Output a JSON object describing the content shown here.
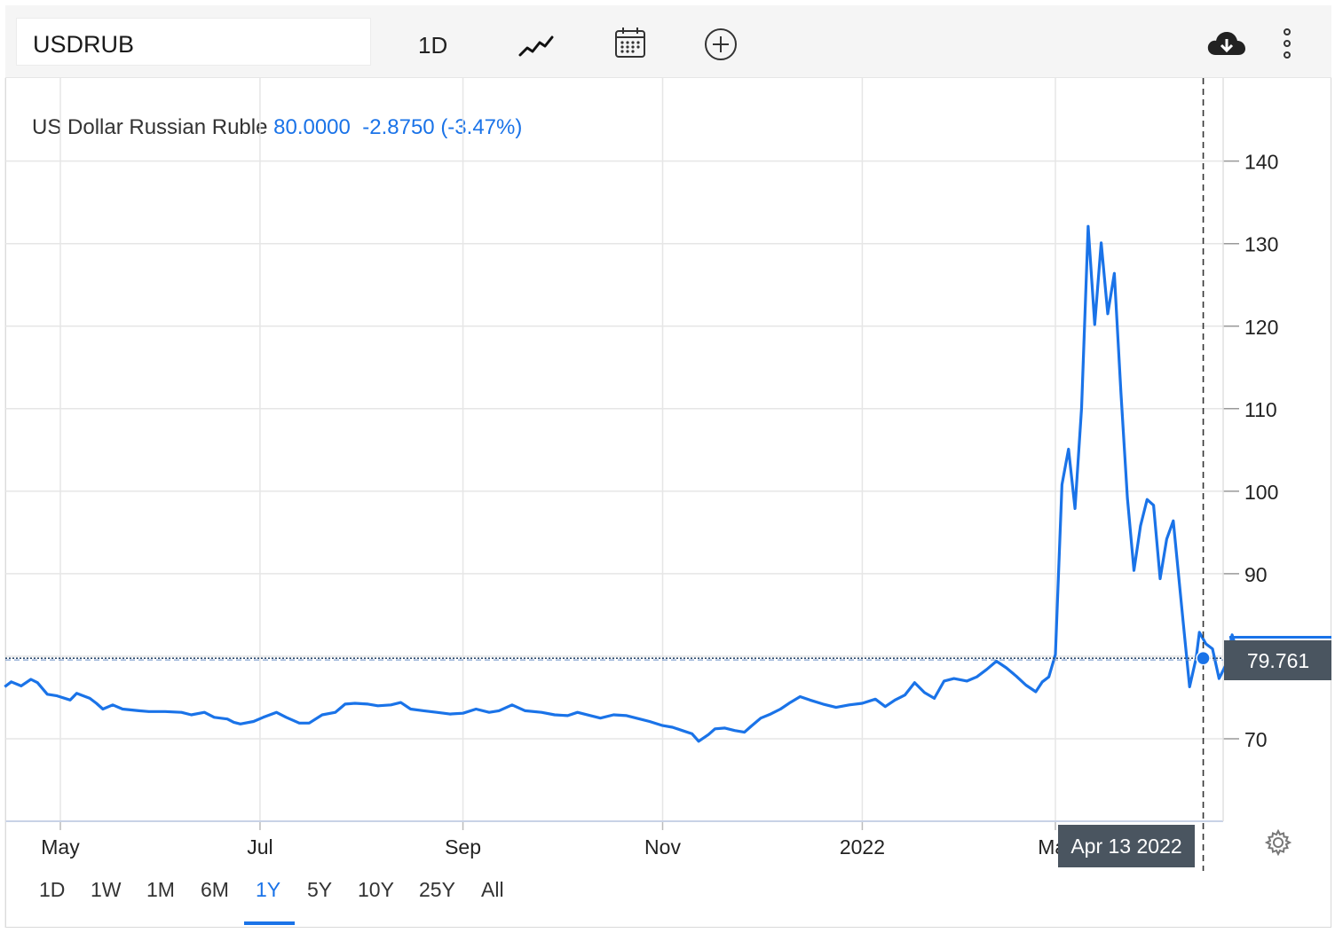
{
  "toolbar": {
    "symbol": "USDRUB",
    "interval_label": "1D",
    "icons": [
      "line-chart-icon",
      "calendar-icon",
      "plus-circle-icon",
      "cloud-download-icon",
      "more-vertical-icon"
    ]
  },
  "legend": {
    "name": "US Dollar Russian Ruble",
    "price": "80.0000",
    "change": "-2.8750",
    "change_pct": "(-3.47%)"
  },
  "crosshair": {
    "date_label": "Apr 13 2022",
    "price_label": "79.761"
  },
  "ranges": {
    "items": [
      "1D",
      "1W",
      "1M",
      "6M",
      "1Y",
      "5Y",
      "10Y",
      "25Y",
      "All"
    ],
    "active": "1Y"
  },
  "colors": {
    "line": "#1a73e8",
    "grid": "#e6e6e6",
    "tooltip_bg": "#4a5560"
  },
  "chart_data": {
    "type": "line",
    "title": "",
    "xlabel": "",
    "ylabel": "",
    "ylim": [
      60,
      150
    ],
    "yticks": [
      70,
      90,
      100,
      110,
      120,
      130,
      140
    ],
    "xticks": [
      {
        "label": "May",
        "date": "2021-05-01"
      },
      {
        "label": "Jul",
        "date": "2021-07-01"
      },
      {
        "label": "Sep",
        "date": "2021-09-01"
      },
      {
        "label": "Nov",
        "date": "2021-11-01"
      },
      {
        "label": "2022",
        "date": "2022-01-01"
      },
      {
        "label": "Mar",
        "date": "2022-03-01"
      }
    ],
    "grid": true,
    "series": [
      {
        "values": [
          [
            "2021-04-14",
            76.3
          ],
          [
            "2021-04-16",
            76.9
          ],
          [
            "2021-04-19",
            76.4
          ],
          [
            "2021-04-22",
            77.2
          ],
          [
            "2021-04-24",
            76.8
          ],
          [
            "2021-04-27",
            75.4
          ],
          [
            "2021-04-30",
            75.2
          ],
          [
            "2021-05-04",
            74.7
          ],
          [
            "2021-05-06",
            75.5
          ],
          [
            "2021-05-10",
            74.9
          ],
          [
            "2021-05-12",
            74.3
          ],
          [
            "2021-05-14",
            73.6
          ],
          [
            "2021-05-17",
            74.1
          ],
          [
            "2021-05-20",
            73.6
          ],
          [
            "2021-05-25",
            73.4
          ],
          [
            "2021-05-28",
            73.3
          ],
          [
            "2021-06-02",
            73.3
          ],
          [
            "2021-06-07",
            73.2
          ],
          [
            "2021-06-10",
            72.9
          ],
          [
            "2021-06-14",
            73.2
          ],
          [
            "2021-06-17",
            72.6
          ],
          [
            "2021-06-21",
            72.4
          ],
          [
            "2021-06-23",
            72.0
          ],
          [
            "2021-06-25",
            71.8
          ],
          [
            "2021-06-29",
            72.1
          ],
          [
            "2021-07-02",
            72.6
          ],
          [
            "2021-07-06",
            73.2
          ],
          [
            "2021-07-09",
            72.6
          ],
          [
            "2021-07-13",
            71.9
          ],
          [
            "2021-07-16",
            71.9
          ],
          [
            "2021-07-20",
            72.9
          ],
          [
            "2021-07-24",
            73.2
          ],
          [
            "2021-07-27",
            74.2
          ],
          [
            "2021-07-30",
            74.3
          ],
          [
            "2021-08-03",
            74.2
          ],
          [
            "2021-08-06",
            74.0
          ],
          [
            "2021-08-10",
            74.1
          ],
          [
            "2021-08-13",
            74.4
          ],
          [
            "2021-08-16",
            73.6
          ],
          [
            "2021-08-20",
            73.4
          ],
          [
            "2021-08-24",
            73.2
          ],
          [
            "2021-08-28",
            73.0
          ],
          [
            "2021-09-01",
            73.1
          ],
          [
            "2021-09-05",
            73.6
          ],
          [
            "2021-09-09",
            73.2
          ],
          [
            "2021-09-12",
            73.4
          ],
          [
            "2021-09-16",
            74.1
          ],
          [
            "2021-09-20",
            73.4
          ],
          [
            "2021-09-25",
            73.2
          ],
          [
            "2021-09-29",
            72.9
          ],
          [
            "2021-10-03",
            72.8
          ],
          [
            "2021-10-06",
            73.2
          ],
          [
            "2021-10-10",
            72.8
          ],
          [
            "2021-10-13",
            72.5
          ],
          [
            "2021-10-17",
            72.9
          ],
          [
            "2021-10-21",
            72.8
          ],
          [
            "2021-10-25",
            72.4
          ],
          [
            "2021-10-28",
            72.1
          ],
          [
            "2021-11-01",
            71.6
          ],
          [
            "2021-11-04",
            71.4
          ],
          [
            "2021-11-07",
            71.0
          ],
          [
            "2021-11-10",
            70.6
          ],
          [
            "2021-11-12",
            69.7
          ],
          [
            "2021-11-15",
            70.5
          ],
          [
            "2021-11-17",
            71.2
          ],
          [
            "2021-11-20",
            71.3
          ],
          [
            "2021-11-23",
            71.0
          ],
          [
            "2021-11-26",
            70.8
          ],
          [
            "2021-11-28",
            71.5
          ],
          [
            "2021-12-01",
            72.5
          ],
          [
            "2021-12-04",
            73.0
          ],
          [
            "2021-12-07",
            73.6
          ],
          [
            "2021-12-10",
            74.4
          ],
          [
            "2021-12-13",
            75.1
          ],
          [
            "2021-12-16",
            74.7
          ],
          [
            "2021-12-20",
            74.2
          ],
          [
            "2021-12-24",
            73.8
          ],
          [
            "2021-12-28",
            74.1
          ],
          [
            "2022-01-01",
            74.3
          ],
          [
            "2022-01-05",
            74.8
          ],
          [
            "2022-01-08",
            73.9
          ],
          [
            "2022-01-11",
            74.7
          ],
          [
            "2022-01-14",
            75.3
          ],
          [
            "2022-01-17",
            76.8
          ],
          [
            "2022-01-20",
            75.6
          ],
          [
            "2022-01-23",
            74.9
          ],
          [
            "2022-01-26",
            77.0
          ],
          [
            "2022-01-29",
            77.3
          ],
          [
            "2022-02-02",
            77.0
          ],
          [
            "2022-02-05",
            77.5
          ],
          [
            "2022-02-08",
            78.4
          ],
          [
            "2022-02-11",
            79.4
          ],
          [
            "2022-02-14",
            78.6
          ],
          [
            "2022-02-17",
            77.6
          ],
          [
            "2022-02-20",
            76.5
          ],
          [
            "2022-02-23",
            75.7
          ],
          [
            "2022-02-25",
            76.9
          ],
          [
            "2022-02-27",
            77.5
          ],
          [
            "2022-03-01",
            80.2
          ],
          [
            "2022-03-03",
            100.8
          ],
          [
            "2022-03-05",
            105.1
          ],
          [
            "2022-03-07",
            97.9
          ],
          [
            "2022-03-09",
            110.1
          ],
          [
            "2022-03-11",
            132.1
          ],
          [
            "2022-03-13",
            120.2
          ],
          [
            "2022-03-15",
            130.1
          ],
          [
            "2022-03-17",
            121.5
          ],
          [
            "2022-03-19",
            126.4
          ],
          [
            "2022-03-21",
            112.0
          ],
          [
            "2022-03-23",
            99.2
          ],
          [
            "2022-03-25",
            90.4
          ],
          [
            "2022-03-27",
            95.8
          ],
          [
            "2022-03-29",
            99.0
          ],
          [
            "2022-03-31",
            98.3
          ],
          [
            "2022-04-02",
            89.4
          ],
          [
            "2022-04-04",
            94.2
          ],
          [
            "2022-04-06",
            96.4
          ],
          [
            "2022-04-09",
            84.3
          ],
          [
            "2022-04-11",
            76.3
          ],
          [
            "2022-04-13",
            79.8
          ],
          [
            "2022-04-14",
            82.9
          ],
          [
            "2022-04-16",
            81.5
          ],
          [
            "2022-04-18",
            80.9
          ],
          [
            "2022-04-20",
            77.3
          ],
          [
            "2022-04-22",
            78.9
          ],
          [
            "2022-04-24",
            82.6
          ],
          [
            "2022-04-26",
            80.0
          ]
        ]
      }
    ],
    "last_value": 79.761,
    "crosshair_date": "2022-04-13"
  }
}
